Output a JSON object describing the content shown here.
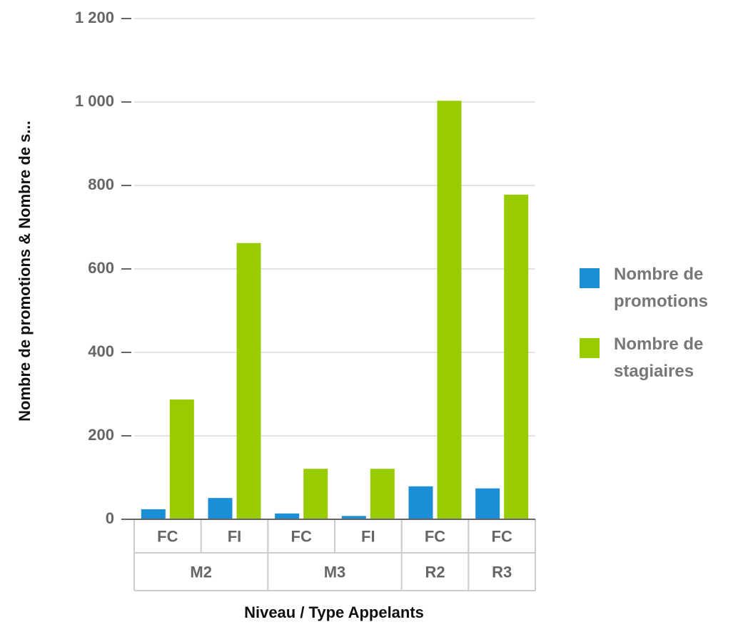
{
  "chart_data": {
    "type": "bar",
    "x_label": "Niveau / Type Appelants",
    "y_label": "Nombre de promotions & Nombre de s...",
    "groups": [
      {
        "label": "M2",
        "categories": [
          "FC",
          "FI"
        ]
      },
      {
        "label": "M3",
        "categories": [
          "FC",
          "FI"
        ]
      },
      {
        "label": "R2",
        "categories": [
          "FC"
        ]
      },
      {
        "label": "R3",
        "categories": [
          "FC"
        ]
      }
    ],
    "series": [
      {
        "name": "Nombre de promotions",
        "color": "#1a8fd6",
        "values": [
          24,
          51,
          14,
          8,
          79,
          74
        ]
      },
      {
        "name": "Nombre de stagiaires",
        "color": "#99cc00",
        "values": [
          287,
          662,
          121,
          121,
          1003,
          778
        ]
      }
    ],
    "ylim": [
      0,
      1200
    ],
    "yticks": [
      0,
      200,
      400,
      600,
      800,
      {
        "value": 1000,
        "label": "1 000"
      },
      {
        "value": 1200,
        "label": "1 200"
      }
    ],
    "grid": true,
    "legend": "right"
  }
}
